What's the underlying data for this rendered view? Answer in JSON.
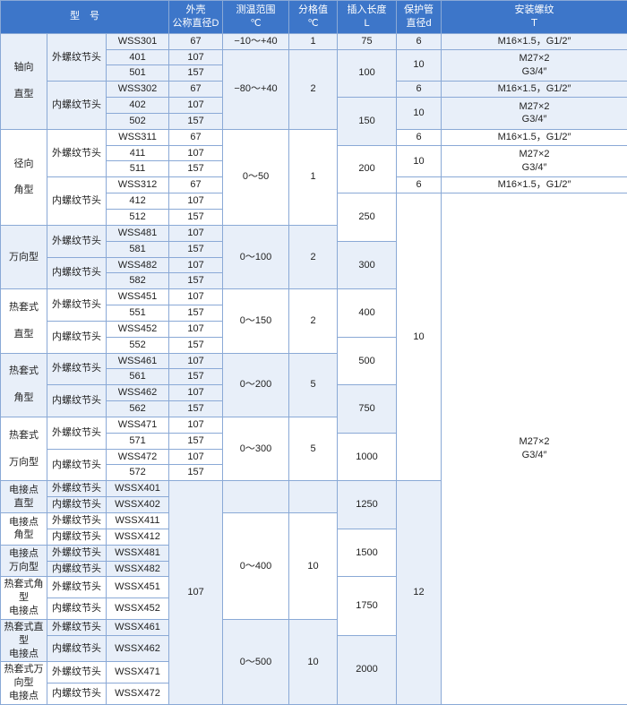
{
  "header": {
    "model": "型　号",
    "diameter": "外壳\n公称直径D",
    "range": "测温范围\n℃",
    "division": "分格值\n℃",
    "insert": "插入长度\nL",
    "tube": "保护管\n直径d",
    "thread": "安装螺纹\nＴ"
  },
  "groups": [
    {
      "name_top": "轴向",
      "name_bot": "直型",
      "alt": true,
      "sub": [
        {
          "head": "外螺纹节头",
          "models": [
            "WSS301",
            "401",
            "501"
          ],
          "dia": [
            "67",
            "107",
            "157"
          ]
        },
        {
          "head": "内螺纹节头",
          "models": [
            "WSS302",
            "402",
            "502"
          ],
          "dia": [
            "67",
            "107",
            "157"
          ]
        }
      ]
    },
    {
      "name_top": "径向",
      "name_bot": "角型",
      "alt": false,
      "sub": [
        {
          "head": "外螺纹节头",
          "models": [
            "WSS311",
            "411",
            "511"
          ],
          "dia": [
            "67",
            "107",
            "157"
          ]
        },
        {
          "head": "内螺纹节头",
          "models": [
            "WSS312",
            "412",
            "512"
          ],
          "dia": [
            "67",
            "107",
            "157"
          ]
        }
      ]
    },
    {
      "name_top": "",
      "name_bot": "万向型",
      "alt": true,
      "sub": [
        {
          "head": "外螺纹节头",
          "models": [
            "WSS481",
            "581"
          ],
          "dia": [
            "107",
            "157"
          ]
        },
        {
          "head": "内螺纹节头",
          "models": [
            "WSS482",
            "582"
          ],
          "dia": [
            "107",
            "157"
          ]
        }
      ]
    },
    {
      "name_top": "热套式",
      "name_bot": "直型",
      "alt": false,
      "sub": [
        {
          "head": "外螺纹节头",
          "models": [
            "WSS451",
            "551"
          ],
          "dia": [
            "107",
            "157"
          ]
        },
        {
          "head": "内螺纹节头",
          "models": [
            "WSS452",
            "552"
          ],
          "dia": [
            "107",
            "157"
          ]
        }
      ]
    },
    {
      "name_top": "热套式",
      "name_bot": "角型",
      "alt": true,
      "sub": [
        {
          "head": "外螺纹节头",
          "models": [
            "WSS461",
            "561"
          ],
          "dia": [
            "107",
            "157"
          ]
        },
        {
          "head": "内螺纹节头",
          "models": [
            "WSS462",
            "562"
          ],
          "dia": [
            "107",
            "157"
          ]
        }
      ]
    },
    {
      "name_top": "热套式",
      "name_bot": "万向型",
      "alt": false,
      "sub": [
        {
          "head": "外螺纹节头",
          "models": [
            "WSS471",
            "571"
          ],
          "dia": [
            "107",
            "157"
          ]
        },
        {
          "head": "内螺纹节头",
          "models": [
            "WSS472",
            "572"
          ],
          "dia": [
            "107",
            "157"
          ]
        }
      ]
    }
  ],
  "elec": [
    {
      "name_top": "电接点",
      "name_bot": "直型",
      "alt": true,
      "sub": [
        {
          "head": "外螺纹节头",
          "model": "WSSX401"
        },
        {
          "head": "内螺纹节头",
          "model": "WSSX402"
        }
      ]
    },
    {
      "name_top": "电接点",
      "name_bot": "角型",
      "alt": false,
      "sub": [
        {
          "head": "外螺纹节头",
          "model": "WSSX411"
        },
        {
          "head": "内螺纹节头",
          "model": "WSSX412"
        }
      ]
    },
    {
      "name_top": "电接点",
      "name_bot": "万向型",
      "alt": true,
      "sub": [
        {
          "head": "外螺纹节头",
          "model": "WSSX481"
        },
        {
          "head": "内螺纹节头",
          "model": "WSSX482"
        }
      ]
    },
    {
      "name_top": "热套式角型",
      "name_bot": "电接点",
      "alt": false,
      "sub": [
        {
          "head": "外螺纹节头",
          "model": "WSSX451"
        },
        {
          "head": "内螺纹节头",
          "model": "WSSX452"
        }
      ]
    },
    {
      "name_top": "热套式直型",
      "name_bot": "电接点",
      "alt": true,
      "sub": [
        {
          "head": "外螺纹节头",
          "model": "WSSX461"
        },
        {
          "head": "内螺纹节头",
          "model": "WSSX462"
        }
      ]
    },
    {
      "name_top": "热套式万向型",
      "name_bot": "电接点",
      "alt": false,
      "sub": [
        {
          "head": "外螺纹节头",
          "model": "WSSX471"
        },
        {
          "head": "内螺纹节头",
          "model": "WSSX472"
        }
      ]
    }
  ],
  "ranges": [
    {
      "range": "−10～+40",
      "div": "1"
    },
    {
      "range": "−80～+40",
      "div": "2"
    },
    {
      "range": "0～50",
      "div": "1"
    },
    {
      "range": "0～100",
      "div": "2"
    },
    {
      "range": "0～150",
      "div": "2"
    },
    {
      "range": "0～200",
      "div": "5"
    },
    {
      "range": "0～300",
      "div": "5"
    },
    {
      "range": "0～400",
      "div": "10"
    },
    {
      "range": "0～500",
      "div": "10"
    }
  ],
  "inserts": [
    "75",
    "100",
    "150",
    "200",
    "250",
    "300",
    "400",
    "500",
    "750",
    "1000",
    "1250",
    "1500",
    "1750",
    "2000"
  ],
  "tubes": {
    "t6": "6",
    "t10": "10",
    "t12": "12"
  },
  "threads": {
    "a": "M16×1.5，G1/2″",
    "b": "M27×2\nG3/4″"
  },
  "dia107": "107"
}
